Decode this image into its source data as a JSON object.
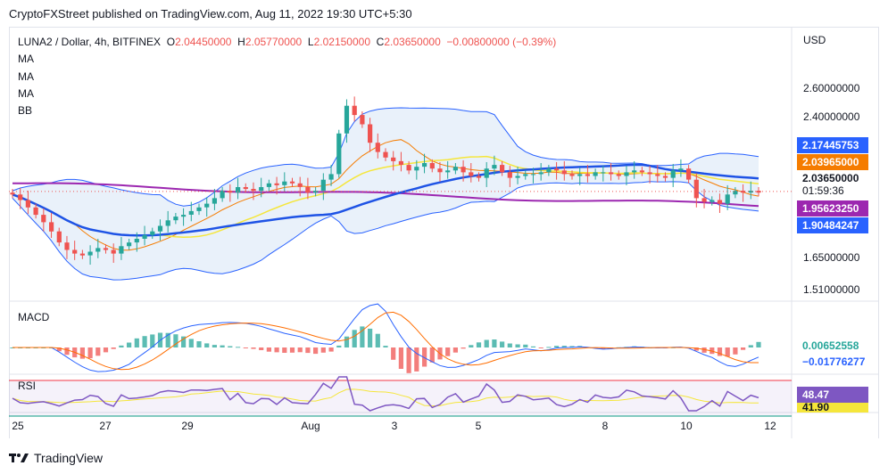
{
  "attribution": "CryptoFXStreet published on TradingView.com, Aug 11, 2022 19:30 UTC+5:30",
  "header": {
    "symbol": "LUNA2 / Dollar, 4h, BITFINEX",
    "o_label": "O",
    "o_value": "2.04450000",
    "h_label": "H",
    "h_value": "2.05770000",
    "l_label": "L",
    "l_value": "2.02150000",
    "c_label": "C",
    "c_value": "2.03650000",
    "change": "−0.00800000 (−0.39%)",
    "indicators": [
      "MA",
      "MA",
      "MA",
      "BB"
    ]
  },
  "currency": "USD",
  "colors": {
    "up": "#26a69a",
    "down": "#ef5350",
    "bb_line": "#2962ff",
    "bb_fill": "#dbe8f7",
    "ma_orange": "#f57c00",
    "ma_yellow": "#f5e63b",
    "ma_purple": "#9c27b0",
    "ma_blue": "#1e53e5",
    "macd_line": "#2962ff",
    "signal_line": "#ff6d00",
    "rsi_line": "#7e57c2",
    "rsi_ma": "#f5e63b"
  },
  "price_axis": {
    "ticks": [
      "2.60000000",
      "2.40000000",
      "1.65000000",
      "1.51000000"
    ],
    "tags": [
      {
        "value": "2.17445753",
        "color": "#2962ff"
      },
      {
        "value": "2.03965000",
        "color": "#f57c00"
      },
      {
        "value": "2.03650000",
        "color": "#ffffff",
        "text_color": "#131722",
        "sub": "01:59:36"
      },
      {
        "value": "1.95623250",
        "color": "#9c27b0"
      },
      {
        "value": "1.90484247",
        "color": "#2962ff"
      }
    ]
  },
  "macd": {
    "label": "MACD",
    "tags": [
      {
        "value": "0.00652558",
        "color": "#ffffff",
        "text_color": "#26a69a"
      },
      {
        "value": "−0.01776277",
        "color": "#ffffff",
        "text_color": "#2962ff"
      }
    ]
  },
  "rsi": {
    "label": "RSI",
    "tags": [
      {
        "value": "48.47",
        "color": "#7e57c2"
      },
      {
        "value": "41.90",
        "color": "#f5e63b",
        "text_color": "#131722"
      }
    ]
  },
  "x_axis": {
    "labels": [
      "25",
      "27",
      "29",
      "Aug",
      "3",
      "5",
      "8",
      "10",
      "12"
    ]
  },
  "footer": {
    "brand": "TradingView"
  },
  "chart_data": {
    "type": "candlestick",
    "title": "LUNA2 / Dollar, 4h, BITFINEX",
    "interval": "4h",
    "x_ticks": [
      "25",
      "27",
      "29",
      "Aug",
      "3",
      "5",
      "8",
      "10",
      "12"
    ],
    "y_ticks": [
      2.6,
      2.4,
      1.65,
      1.51
    ],
    "ohlc_last": {
      "open": 2.0445,
      "high": 2.0577,
      "low": 2.0215,
      "close": 2.0365,
      "change": -0.008,
      "change_pct": -0.39
    },
    "close_series": [
      2.02,
      1.99,
      1.95,
      1.91,
      1.87,
      1.82,
      1.76,
      1.72,
      1.7,
      1.69,
      1.71,
      1.73,
      1.72,
      1.7,
      1.74,
      1.76,
      1.78,
      1.8,
      1.82,
      1.85,
      1.88,
      1.9,
      1.91,
      1.93,
      1.95,
      1.97,
      2.0,
      2.04,
      2.03,
      2.06,
      2.05,
      2.04,
      2.06,
      2.08,
      2.07,
      2.09,
      2.08,
      2.06,
      2.03,
      2.04,
      2.1,
      2.13,
      2.35,
      2.5,
      2.45,
      2.4,
      2.3,
      2.25,
      2.22,
      2.2,
      2.18,
      2.15,
      2.17,
      2.19,
      2.16,
      2.14,
      2.15,
      2.17,
      2.14,
      2.12,
      2.11,
      2.16,
      2.18,
      2.14,
      2.11,
      2.12,
      2.13,
      2.13,
      2.14,
      2.16,
      2.15,
      2.13,
      2.12,
      2.13,
      2.12,
      2.14,
      2.14,
      2.13,
      2.12,
      2.14,
      2.15,
      2.14,
      2.13,
      2.12,
      2.11,
      2.15,
      2.16,
      2.1,
      2.0,
      1.98,
      1.99,
      1.97,
      2.02,
      2.04,
      2.03,
      2.04,
      2.03
    ],
    "series": [
      {
        "name": "MA",
        "values_end": 2.03965
      },
      {
        "name": "MA",
        "values_end": 1.9562325
      },
      {
        "name": "MA",
        "values_end": 1.90484247
      },
      {
        "name": "BB",
        "upper_end": 2.17445753
      }
    ],
    "indicators": [
      {
        "name": "MACD",
        "macd": 0.00652558,
        "signal": -0.01776277
      },
      {
        "name": "RSI",
        "rsi": 48.47,
        "rsi_ma": 41.9
      }
    ]
  }
}
